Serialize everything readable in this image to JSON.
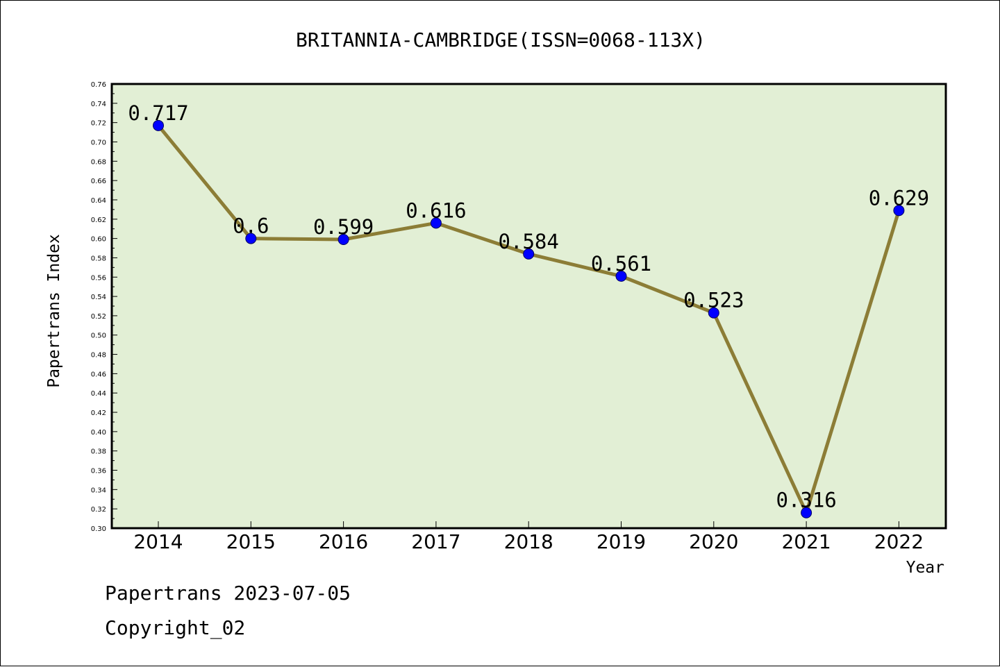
{
  "chart_data": {
    "type": "line",
    "title": "BRITANNIA-CAMBRIDGE(ISSN=0068-113X)",
    "xlabel": "Year",
    "ylabel": "Papertrans Index",
    "categories": [
      "2014",
      "2015",
      "2016",
      "2017",
      "2018",
      "2019",
      "2020",
      "2021",
      "2022"
    ],
    "values": [
      0.717,
      0.6,
      0.599,
      0.616,
      0.584,
      0.561,
      0.523,
      0.316,
      0.629
    ],
    "data_labels": [
      "0.717",
      "0.6",
      "0.599",
      "0.616",
      "0.584",
      "0.561",
      "0.523",
      "0.316",
      "0.629"
    ],
    "ylim": [
      0.3,
      0.76
    ],
    "yticks": [
      "0.30",
      "0.32",
      "0.34",
      "0.36",
      "0.38",
      "0.40",
      "0.42",
      "0.44",
      "0.46",
      "0.48",
      "0.50",
      "0.52",
      "0.54",
      "0.56",
      "0.58",
      "0.60",
      "0.62",
      "0.64",
      "0.66",
      "0.68",
      "0.70",
      "0.72",
      "0.74",
      "0.76"
    ],
    "grid": false,
    "colors": {
      "plot_background": "#e2efd5",
      "line": "#8c7d36",
      "marker": "#0000ff"
    }
  },
  "footer": {
    "line1": "Papertrans 2023-07-05",
    "line2": "Copyright_02"
  }
}
